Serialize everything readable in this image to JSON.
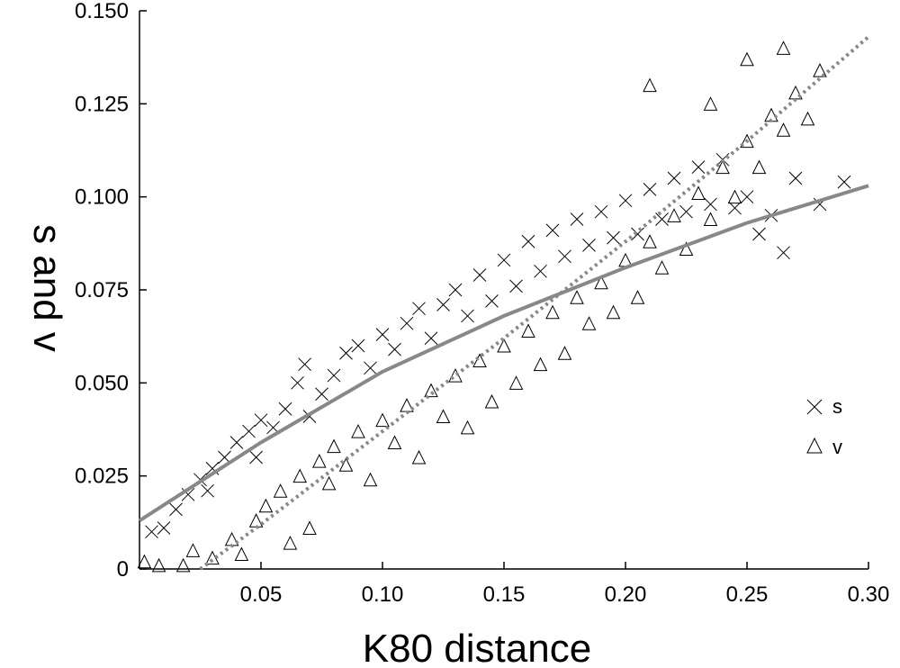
{
  "chart_data": {
    "type": "scatter",
    "title": "",
    "xlabel": "K80 distance",
    "ylabel": "s and v",
    "xlim": [
      0,
      0.3
    ],
    "ylim": [
      0,
      0.15
    ],
    "x_ticks": [
      "0.05",
      "0.10",
      "0.15",
      "0.20",
      "0.25",
      "0.30"
    ],
    "x_tick_values": [
      0.05,
      0.1,
      0.15,
      0.2,
      0.25,
      0.3
    ],
    "y_ticks": [
      "0",
      "0.025",
      "0.050",
      "0.075",
      "0.100",
      "0.125",
      "0.150"
    ],
    "y_tick_values": [
      0,
      0.025,
      0.05,
      0.075,
      0.1,
      0.125,
      0.15
    ],
    "grid": false,
    "legend_position": "right",
    "series": [
      {
        "name": "s",
        "marker": "x",
        "color": "#000000",
        "trend": {
          "style": "solid",
          "color": "#888888",
          "x": [
            0.0,
            0.05,
            0.1,
            0.15,
            0.2,
            0.25,
            0.3
          ],
          "y": [
            0.013,
            0.034,
            0.053,
            0.068,
            0.081,
            0.093,
            0.103
          ]
        },
        "points": [
          [
            0.005,
            0.01
          ],
          [
            0.01,
            0.011
          ],
          [
            0.015,
            0.016
          ],
          [
            0.02,
            0.02
          ],
          [
            0.025,
            0.024
          ],
          [
            0.028,
            0.021
          ],
          [
            0.03,
            0.027
          ],
          [
            0.035,
            0.03
          ],
          [
            0.04,
            0.034
          ],
          [
            0.045,
            0.037
          ],
          [
            0.048,
            0.03
          ],
          [
            0.05,
            0.04
          ],
          [
            0.055,
            0.038
          ],
          [
            0.06,
            0.043
          ],
          [
            0.065,
            0.05
          ],
          [
            0.068,
            0.055
          ],
          [
            0.07,
            0.041
          ],
          [
            0.075,
            0.047
          ],
          [
            0.08,
            0.052
          ],
          [
            0.085,
            0.058
          ],
          [
            0.09,
            0.06
          ],
          [
            0.095,
            0.054
          ],
          [
            0.1,
            0.063
          ],
          [
            0.105,
            0.059
          ],
          [
            0.11,
            0.066
          ],
          [
            0.115,
            0.07
          ],
          [
            0.12,
            0.062
          ],
          [
            0.125,
            0.071
          ],
          [
            0.13,
            0.075
          ],
          [
            0.135,
            0.068
          ],
          [
            0.14,
            0.079
          ],
          [
            0.145,
            0.072
          ],
          [
            0.15,
            0.083
          ],
          [
            0.155,
            0.076
          ],
          [
            0.16,
            0.088
          ],
          [
            0.165,
            0.08
          ],
          [
            0.17,
            0.091
          ],
          [
            0.175,
            0.084
          ],
          [
            0.18,
            0.094
          ],
          [
            0.185,
            0.087
          ],
          [
            0.19,
            0.096
          ],
          [
            0.195,
            0.089
          ],
          [
            0.2,
            0.099
          ],
          [
            0.205,
            0.09
          ],
          [
            0.21,
            0.102
          ],
          [
            0.215,
            0.094
          ],
          [
            0.22,
            0.105
          ],
          [
            0.225,
            0.096
          ],
          [
            0.23,
            0.108
          ],
          [
            0.235,
            0.098
          ],
          [
            0.24,
            0.11
          ],
          [
            0.245,
            0.097
          ],
          [
            0.25,
            0.1
          ],
          [
            0.255,
            0.09
          ],
          [
            0.26,
            0.095
          ],
          [
            0.265,
            0.085
          ],
          [
            0.27,
            0.105
          ],
          [
            0.28,
            0.098
          ],
          [
            0.29,
            0.104
          ]
        ]
      },
      {
        "name": "v",
        "marker": "triangle",
        "color": "#000000",
        "trend": {
          "style": "dotted",
          "color": "#888888",
          "x": [
            0.025,
            0.05,
            0.1,
            0.15,
            0.2,
            0.25,
            0.3
          ],
          "y": [
            0.0,
            0.012,
            0.037,
            0.062,
            0.088,
            0.115,
            0.143
          ]
        },
        "points": [
          [
            0.002,
            0.002
          ],
          [
            0.008,
            0.001
          ],
          [
            0.018,
            0.001
          ],
          [
            0.022,
            0.005
          ],
          [
            0.03,
            0.003
          ],
          [
            0.038,
            0.008
          ],
          [
            0.042,
            0.004
          ],
          [
            0.048,
            0.013
          ],
          [
            0.052,
            0.017
          ],
          [
            0.058,
            0.021
          ],
          [
            0.062,
            0.007
          ],
          [
            0.066,
            0.025
          ],
          [
            0.07,
            0.011
          ],
          [
            0.074,
            0.029
          ],
          [
            0.078,
            0.023
          ],
          [
            0.08,
            0.033
          ],
          [
            0.085,
            0.028
          ],
          [
            0.09,
            0.037
          ],
          [
            0.095,
            0.024
          ],
          [
            0.1,
            0.04
          ],
          [
            0.105,
            0.034
          ],
          [
            0.11,
            0.044
          ],
          [
            0.115,
            0.03
          ],
          [
            0.12,
            0.048
          ],
          [
            0.125,
            0.041
          ],
          [
            0.13,
            0.052
          ],
          [
            0.135,
            0.038
          ],
          [
            0.14,
            0.056
          ],
          [
            0.145,
            0.045
          ],
          [
            0.15,
            0.06
          ],
          [
            0.155,
            0.05
          ],
          [
            0.16,
            0.064
          ],
          [
            0.165,
            0.055
          ],
          [
            0.17,
            0.069
          ],
          [
            0.175,
            0.058
          ],
          [
            0.18,
            0.073
          ],
          [
            0.185,
            0.066
          ],
          [
            0.19,
            0.077
          ],
          [
            0.195,
            0.069
          ],
          [
            0.2,
            0.083
          ],
          [
            0.205,
            0.073
          ],
          [
            0.21,
            0.088
          ],
          [
            0.215,
            0.081
          ],
          [
            0.22,
            0.095
          ],
          [
            0.225,
            0.086
          ],
          [
            0.23,
            0.101
          ],
          [
            0.235,
            0.094
          ],
          [
            0.24,
            0.108
          ],
          [
            0.245,
            0.1
          ],
          [
            0.25,
            0.115
          ],
          [
            0.255,
            0.108
          ],
          [
            0.26,
            0.122
          ],
          [
            0.265,
            0.118
          ],
          [
            0.27,
            0.128
          ],
          [
            0.275,
            0.121
          ],
          [
            0.28,
            0.134
          ],
          [
            0.25,
            0.137
          ],
          [
            0.265,
            0.14
          ],
          [
            0.235,
            0.125
          ],
          [
            0.21,
            0.13
          ]
        ]
      }
    ]
  }
}
